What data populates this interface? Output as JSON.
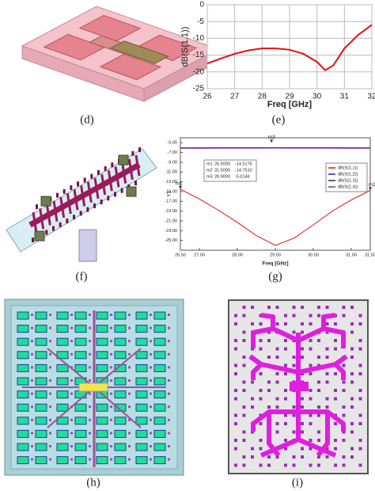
{
  "panel_labels": [
    "(d)",
    "(e)",
    "(f)",
    "(g)",
    "(h)",
    "(i)"
  ],
  "chart_data": [
    {
      "type": "line",
      "x_label": "Freq [GHz]",
      "y_label": "dB(S(1,1))",
      "x": [
        26,
        26.5,
        27,
        27.5,
        28,
        28.5,
        29,
        29.5,
        30,
        30.3,
        30.6,
        31,
        31.5,
        32
      ],
      "values": [
        -17.5,
        -16,
        -14.6,
        -13.6,
        -13,
        -13,
        -13.4,
        -14.6,
        -17,
        -19.5,
        -18,
        -13,
        -9,
        -6
      ],
      "color": "#e01010",
      "xlim": [
        26,
        32
      ],
      "xticks": [
        26,
        27,
        28,
        29,
        30,
        31,
        32
      ],
      "ylim": [
        -25,
        0
      ],
      "yticks": [
        0,
        -5,
        -10,
        -15,
        -20,
        -25
      ],
      "grid": true
    },
    {
      "type": "line",
      "x_label": "Freq [GHz]",
      "y_label": "Y1",
      "x": [
        26.5,
        27,
        27.5,
        28,
        28.5,
        29,
        29.5,
        30,
        30.5,
        31,
        31.5
      ],
      "series": [
        {
          "name": "dB(S(1,1))",
          "color": "#e01010",
          "values": [
            -14.5175,
            -16.5,
            -18.8,
            -21.3,
            -24,
            -26,
            -24.5,
            -21.8,
            -19,
            -16.7,
            -14.751
          ]
        },
        {
          "name": "dB(S(1,2))",
          "color": "#2020c0",
          "values": [
            -6.05,
            -6.04,
            -6.03,
            -6.02,
            -6.02,
            -6.01,
            -6.02,
            -6.02,
            -6.03,
            -6.04,
            -6.05
          ]
        },
        {
          "name": "dB(S(1,3))",
          "color": "#303030",
          "values": [
            -6.1,
            -6.09,
            -6.08,
            -6.07,
            -6.07,
            -6.06,
            -6.07,
            -6.07,
            -6.08,
            -6.09,
            -6.1
          ]
        },
        {
          "name": "dB(S(1,4))",
          "color": "#8030a0",
          "values": [
            -6.15,
            -6.14,
            -6.13,
            -6.12,
            -6.12,
            -6.11,
            -6.12,
            -6.12,
            -6.13,
            -6.14,
            -6.15
          ]
        }
      ],
      "markers": [
        {
          "name": "m1",
          "x": 26.5,
          "y": -14.5175
        },
        {
          "name": "m2",
          "x": 31.5,
          "y": -14.751
        },
        {
          "name": "m3",
          "x": 28.9,
          "y": -5.0146
        }
      ],
      "marker_table": [
        [
          "m1",
          "26.5000",
          "-14.5175"
        ],
        [
          "m2",
          "31.5000",
          "-14.7510"
        ],
        [
          "m3",
          "28.9000",
          "-5.0146"
        ]
      ],
      "xlim": [
        26.5,
        31.5
      ],
      "xticks": [
        {
          "value": 26.5,
          "label": "26.50"
        },
        {
          "value": 27,
          "label": "27.00"
        },
        {
          "value": 28,
          "label": "28.00"
        },
        {
          "value": 29,
          "label": "29.00"
        },
        {
          "value": 30,
          "label": "30.00"
        },
        {
          "value": 31,
          "label": "31.00"
        },
        {
          "value": 31.5,
          "label": "31.50"
        }
      ],
      "ylim": [
        -27,
        -4
      ],
      "yticks": [
        {
          "value": -5,
          "label": "-5.00"
        },
        {
          "value": -7,
          "label": "-7.00"
        },
        {
          "value": -9,
          "label": "-9.00"
        },
        {
          "value": -11,
          "label": "-11.00"
        },
        {
          "value": -13,
          "label": "-13.00"
        },
        {
          "value": -15,
          "label": "-15.00"
        },
        {
          "value": -17,
          "label": "-17.00"
        },
        {
          "value": -19,
          "label": "-19.00"
        },
        {
          "value": -21,
          "label": "-21.00"
        },
        {
          "value": -23,
          "label": "-23.00"
        },
        {
          "value": -25,
          "label": "-25.00"
        }
      ],
      "grid": false
    }
  ]
}
